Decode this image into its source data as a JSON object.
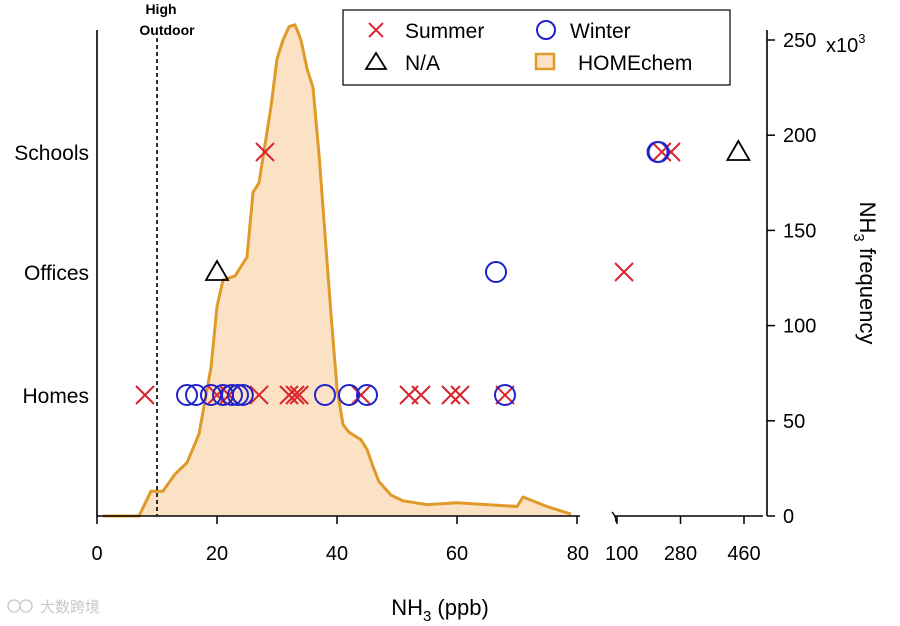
{
  "chart_data": {
    "type": "scatter",
    "x_axis": {
      "label_main": "NH",
      "label_sub": "3",
      "label_rest": " (ppb)",
      "segments": [
        {
          "range": [
            0,
            80
          ],
          "ticks": [
            0,
            20,
            40,
            60,
            80
          ],
          "tick_labels": [
            "0",
            "20",
            "40",
            "60",
            "80"
          ]
        },
        {
          "range": [
            100,
            460
          ],
          "ticks": [
            100,
            280,
            460
          ],
          "tick_labels": [
            "100",
            "280",
            "460"
          ]
        }
      ],
      "break_between": [
        80,
        100
      ]
    },
    "y_categories": [
      "Homes",
      "Offices",
      "Schools"
    ],
    "right_axis": {
      "label_main": "NH",
      "label_sub": "3",
      "label_rest": " frequency",
      "range": [
        0,
        250000
      ],
      "ticks": [
        0,
        50000,
        100000,
        150000,
        200000,
        250000
      ],
      "tick_labels": [
        "0",
        "50",
        "100",
        "150",
        "200",
        "250"
      ],
      "multiplier_label": "x10",
      "multiplier_exp": "3"
    },
    "vline": {
      "x": 10,
      "label_line1": "High",
      "label_line2": "Outdoor"
    },
    "legend": {
      "position": "top-right",
      "entries": [
        {
          "name": "Summer",
          "marker": "x",
          "color": "#d9262e"
        },
        {
          "name": "Winter",
          "marker": "circle",
          "color": "#2222cc"
        },
        {
          "name": "N/A",
          "marker": "triangle",
          "color": "#000000"
        },
        {
          "name": "HOMEchem",
          "marker": "area",
          "color": "#e09a2a",
          "fill": "#fbe2c4"
        }
      ]
    },
    "series": [
      {
        "name": "Summer",
        "points": [
          {
            "category": "Homes",
            "x": 8
          },
          {
            "category": "Homes",
            "x": 20
          },
          {
            "category": "Homes",
            "x": 22
          },
          {
            "category": "Homes",
            "x": 27
          },
          {
            "category": "Homes",
            "x": 32
          },
          {
            "category": "Homes",
            "x": 33
          },
          {
            "category": "Homes",
            "x": 33.7
          },
          {
            "category": "Homes",
            "x": 44
          },
          {
            "category": "Homes",
            "x": 52
          },
          {
            "category": "Homes",
            "x": 54
          },
          {
            "category": "Homes",
            "x": 59
          },
          {
            "category": "Homes",
            "x": 60.5
          },
          {
            "category": "Homes",
            "x": 68
          },
          {
            "category": "Offices",
            "x": 120
          },
          {
            "category": "Schools",
            "x": 28
          },
          {
            "category": "Schools",
            "x": 227
          },
          {
            "category": "Schools",
            "x": 253
          }
        ]
      },
      {
        "name": "Winter",
        "points": [
          {
            "category": "Homes",
            "x": 15
          },
          {
            "category": "Homes",
            "x": 16.5
          },
          {
            "category": "Homes",
            "x": 19
          },
          {
            "category": "Homes",
            "x": 21
          },
          {
            "category": "Homes",
            "x": 22.5
          },
          {
            "category": "Homes",
            "x": 23.5
          },
          {
            "category": "Homes",
            "x": 24.3
          },
          {
            "category": "Homes",
            "x": 38
          },
          {
            "category": "Homes",
            "x": 42
          },
          {
            "category": "Homes",
            "x": 45
          },
          {
            "category": "Homes",
            "x": 68
          },
          {
            "category": "Offices",
            "x": 66.5
          },
          {
            "category": "Schools",
            "x": 215
          },
          {
            "category": "Schools",
            "x": 218
          }
        ]
      },
      {
        "name": "N/A",
        "points": [
          {
            "category": "Offices",
            "x": 20
          },
          {
            "category": "Schools",
            "x": 444
          }
        ]
      }
    ],
    "homechem_distribution": {
      "name": "HOMEchem",
      "x": [
        1,
        7,
        9,
        11,
        13,
        15,
        17,
        19,
        20,
        21,
        23,
        25,
        26,
        27,
        29,
        30,
        31,
        32,
        33,
        34,
        35,
        36,
        37,
        38,
        39,
        40,
        41,
        42,
        43,
        44,
        45,
        46,
        47,
        49,
        51,
        55,
        60,
        65,
        70,
        71,
        75,
        79
      ],
      "y": [
        0,
        0,
        13000,
        13000,
        22000,
        28000,
        43000,
        78000,
        110000,
        124000,
        126000,
        136000,
        170000,
        175000,
        215000,
        240000,
        250000,
        257000,
        258000,
        250000,
        235000,
        225000,
        190000,
        148000,
        106000,
        67000,
        48000,
        44000,
        42000,
        40000,
        35000,
        26000,
        18000,
        11000,
        8000,
        6000,
        7000,
        6000,
        5000,
        10000,
        5000,
        1000
      ]
    }
  },
  "watermark": "大数跨境"
}
